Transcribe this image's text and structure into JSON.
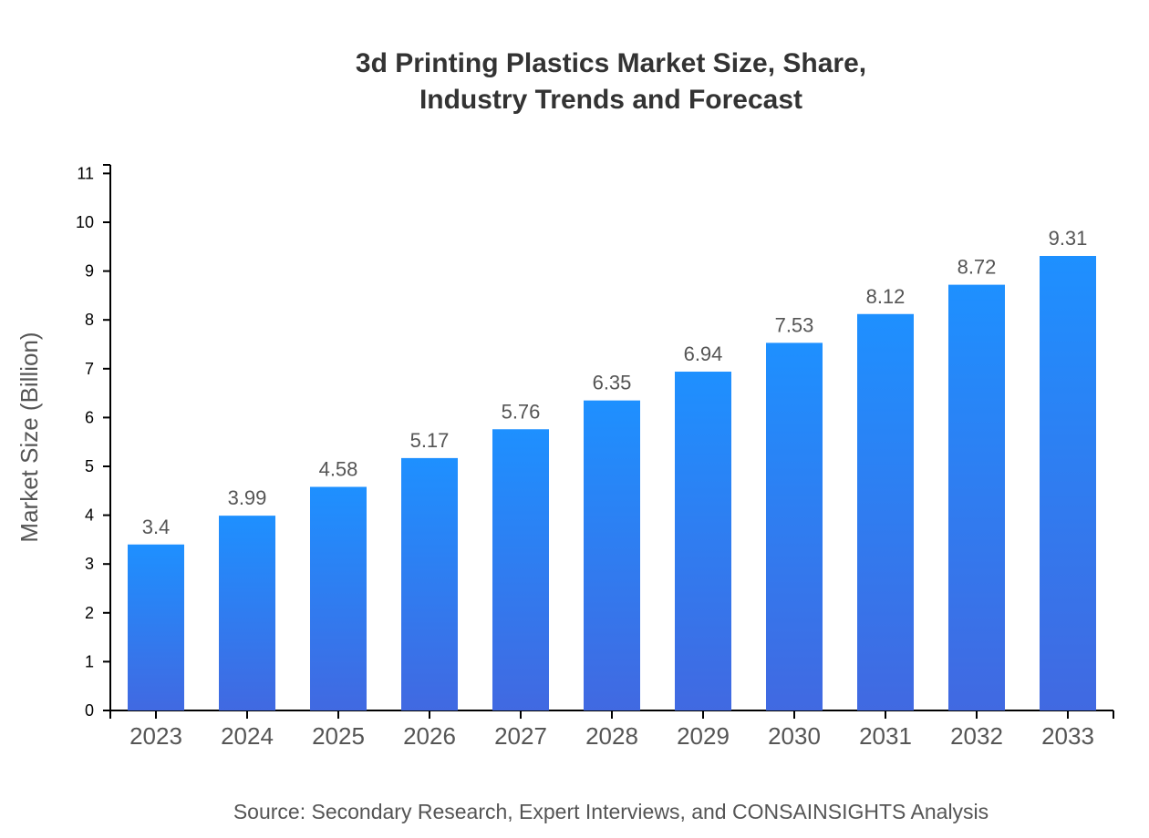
{
  "chart_data": {
    "type": "bar",
    "title_line1": "3d Printing Plastics Market Size, Share,",
    "title_line2": "Industry Trends and Forecast",
    "categories": [
      "2023",
      "2024",
      "2025",
      "2026",
      "2027",
      "2028",
      "2029",
      "2030",
      "2031",
      "2032",
      "2033"
    ],
    "values": [
      3.4,
      3.99,
      4.58,
      5.17,
      5.76,
      6.35,
      6.94,
      7.53,
      8.12,
      8.72,
      9.31
    ],
    "xlabel": "",
    "ylabel": "Market Size (Billion)",
    "ylim": [
      0,
      11
    ],
    "yticks": [
      0,
      1,
      2,
      3,
      4,
      5,
      6,
      7,
      8,
      9,
      10,
      11
    ],
    "grid": false,
    "colors": {
      "bar_top": "#1e90ff",
      "bar_bottom": "#4169e1",
      "label": "#555555",
      "axis": "#000000"
    },
    "source": "Source: Secondary Research, Expert Interviews, and CONSAINSIGHTS Analysis"
  }
}
